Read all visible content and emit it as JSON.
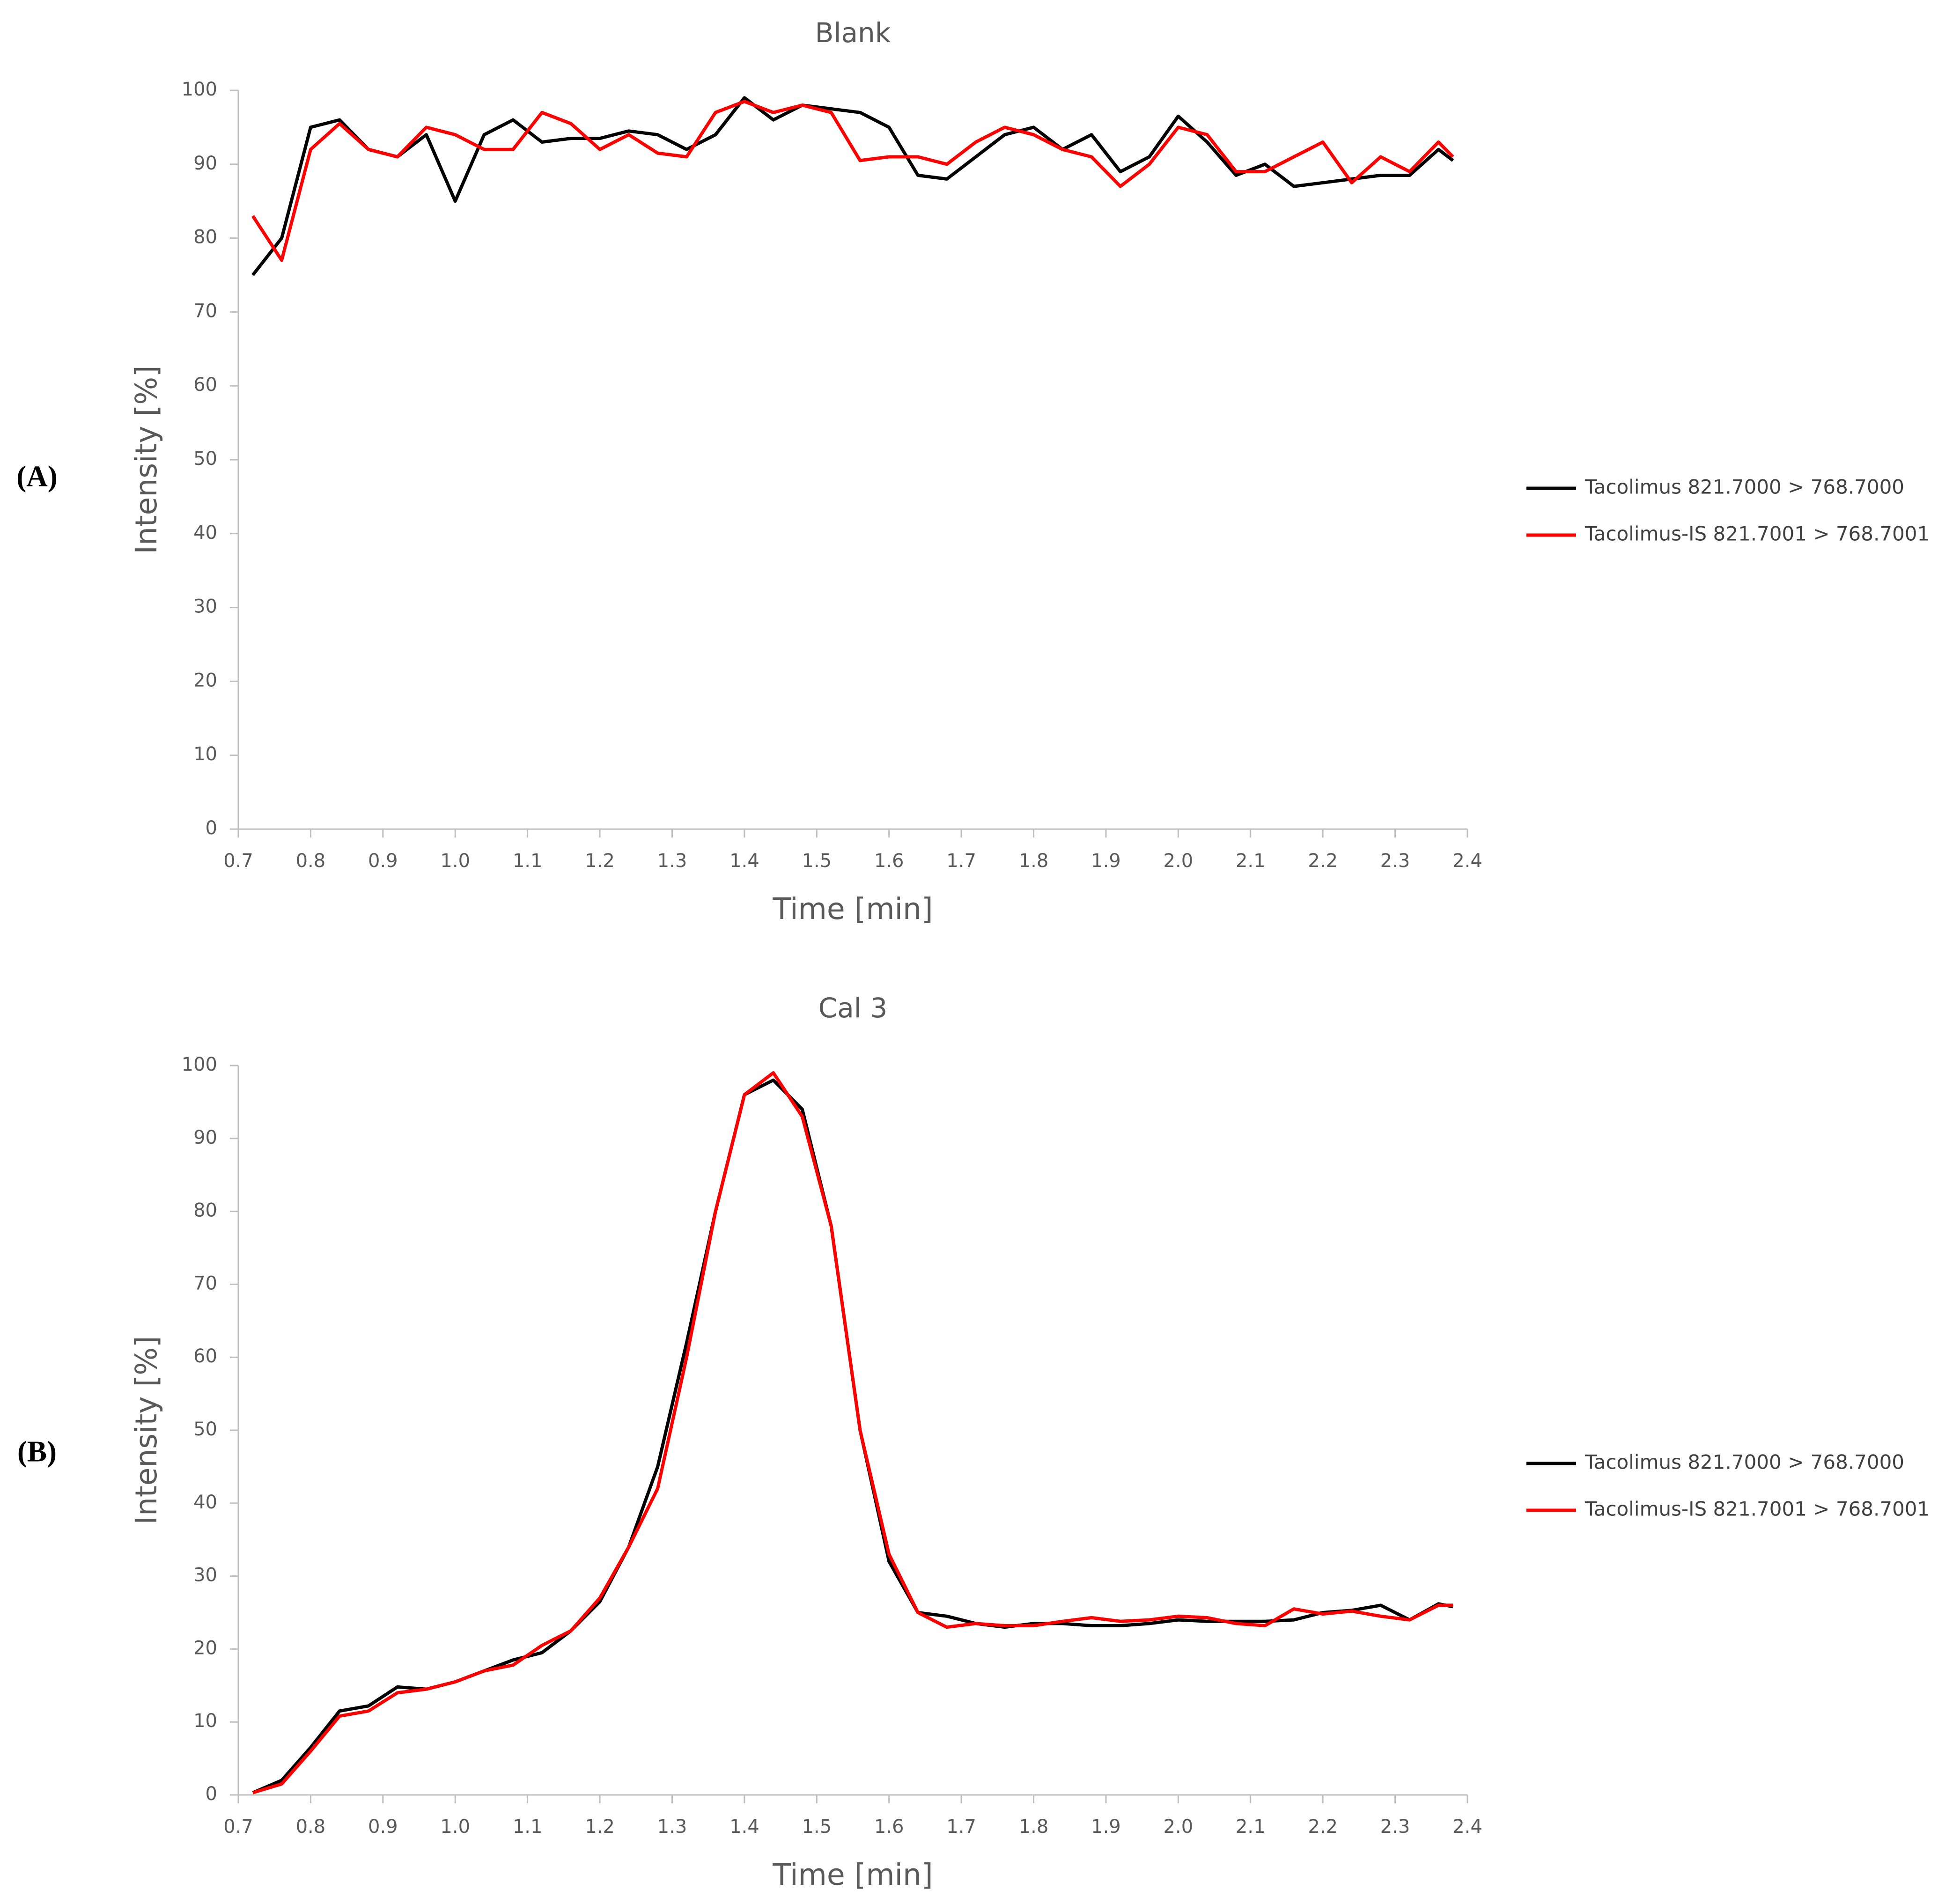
{
  "chart_data": [
    {
      "type": "line",
      "panel_label": "(A)",
      "title": "Blank",
      "xlabel": "Time [min]",
      "ylabel": "Intensity [%]",
      "x": [
        0.72,
        0.76,
        0.8,
        0.84,
        0.88,
        0.92,
        0.96,
        1.0,
        1.04,
        1.08,
        1.12,
        1.16,
        1.2,
        1.24,
        1.28,
        1.32,
        1.36,
        1.4,
        1.44,
        1.48,
        1.52,
        1.56,
        1.6,
        1.64,
        1.68,
        1.72,
        1.76,
        1.8,
        1.84,
        1.88,
        1.92,
        1.96,
        2.0,
        2.04,
        2.08,
        2.12,
        2.16,
        2.2,
        2.24,
        2.28,
        2.32,
        2.36,
        2.38
      ],
      "series": [
        {
          "name": "Tacolimus 821.7000 > 768.7000",
          "color": "#000000",
          "values": [
            75,
            80,
            95,
            96,
            92,
            91,
            94,
            85,
            94,
            96,
            93,
            93.5,
            93.5,
            94.5,
            94,
            92,
            94,
            99,
            96,
            98,
            97.5,
            97,
            95,
            88.5,
            88,
            91,
            94,
            95,
            92,
            94,
            89,
            91,
            96.5,
            93,
            88.5,
            90,
            87,
            87.5,
            88,
            88.5,
            88.5,
            92,
            90.5
          ]
        },
        {
          "name": "Tacolimus-IS 821.7001 > 768.7001",
          "color": "#ff0000",
          "values": [
            83,
            77,
            92,
            95.5,
            92,
            91,
            95,
            94,
            92,
            92,
            97,
            95.5,
            92,
            94,
            91.5,
            91,
            97,
            98.5,
            97,
            98,
            97,
            90.5,
            91,
            91,
            90,
            93,
            95,
            94,
            92,
            91,
            87,
            90,
            95,
            94,
            89,
            89,
            91,
            93,
            87.5,
            91,
            89,
            93,
            91
          ]
        }
      ],
      "xlim": [
        0.7,
        2.4
      ],
      "xticks": [
        0.7,
        0.8,
        0.9,
        {
          "value": 1,
          "label": "1.0"
        },
        1.1,
        1.2,
        1.3,
        1.4,
        1.5,
        1.6,
        1.7,
        1.8,
        1.9,
        {
          "value": 2,
          "label": "2.0"
        },
        2.1,
        2.2,
        2.3,
        2.4
      ],
      "ylim": [
        0,
        100
      ],
      "yticks": [
        0,
        10,
        20,
        30,
        40,
        50,
        60,
        70,
        80,
        90,
        100
      ],
      "grid": false,
      "legend": "right"
    },
    {
      "type": "line",
      "panel_label": "(B)",
      "title": "Cal 3",
      "xlabel": "Time [min]",
      "ylabel": "Intensity [%]",
      "x": [
        0.72,
        0.76,
        0.8,
        0.84,
        0.88,
        0.92,
        0.96,
        1.0,
        1.04,
        1.08,
        1.12,
        1.16,
        1.2,
        1.24,
        1.28,
        1.32,
        1.36,
        1.4,
        1.44,
        1.48,
        1.52,
        1.56,
        1.6,
        1.64,
        1.68,
        1.72,
        1.76,
        1.8,
        1.84,
        1.88,
        1.92,
        1.96,
        2.0,
        2.04,
        2.08,
        2.12,
        2.16,
        2.2,
        2.24,
        2.28,
        2.32,
        2.36,
        2.38
      ],
      "series": [
        {
          "name": "Tacolimus 821.7000 > 768.7000",
          "color": "#000000",
          "values": [
            0.3,
            2,
            6.5,
            11.5,
            12.2,
            14.8,
            14.5,
            15.5,
            17,
            18.5,
            19.5,
            22.5,
            26.5,
            34,
            45,
            62,
            80,
            96,
            98,
            94,
            78,
            50,
            32,
            25,
            24.5,
            23.5,
            23,
            23.5,
            23.5,
            23.2,
            23.2,
            23.5,
            24,
            23.8,
            23.8,
            23.8,
            24,
            25,
            25.3,
            26,
            24,
            26.2,
            25.8
          ]
        },
        {
          "name": "Tacolimus-IS 821.7001 > 768.7001",
          "color": "#ff0000",
          "values": [
            0.3,
            1.5,
            6,
            10.8,
            11.5,
            14,
            14.5,
            15.5,
            17,
            17.8,
            20.5,
            22.5,
            27,
            34,
            42,
            60,
            80,
            96,
            99,
            93,
            78,
            50,
            33,
            25,
            23,
            23.5,
            23.2,
            23.2,
            23.8,
            24.3,
            23.8,
            24,
            24.5,
            24.3,
            23.5,
            23.2,
            25.5,
            24.8,
            25.2,
            24.5,
            24,
            26,
            26
          ]
        }
      ],
      "xlim": [
        0.7,
        2.4
      ],
      "xticks": [
        0.7,
        0.8,
        0.9,
        {
          "value": 1,
          "label": "1.0"
        },
        1.1,
        1.2,
        1.3,
        1.4,
        1.5,
        1.6,
        1.7,
        1.8,
        1.9,
        {
          "value": 2,
          "label": "2.0"
        },
        2.1,
        2.2,
        2.3,
        2.4
      ],
      "ylim": [
        0,
        100
      ],
      "yticks": [
        0,
        10,
        20,
        30,
        40,
        50,
        60,
        70,
        80,
        90,
        100
      ],
      "grid": false,
      "legend": "right"
    }
  ]
}
